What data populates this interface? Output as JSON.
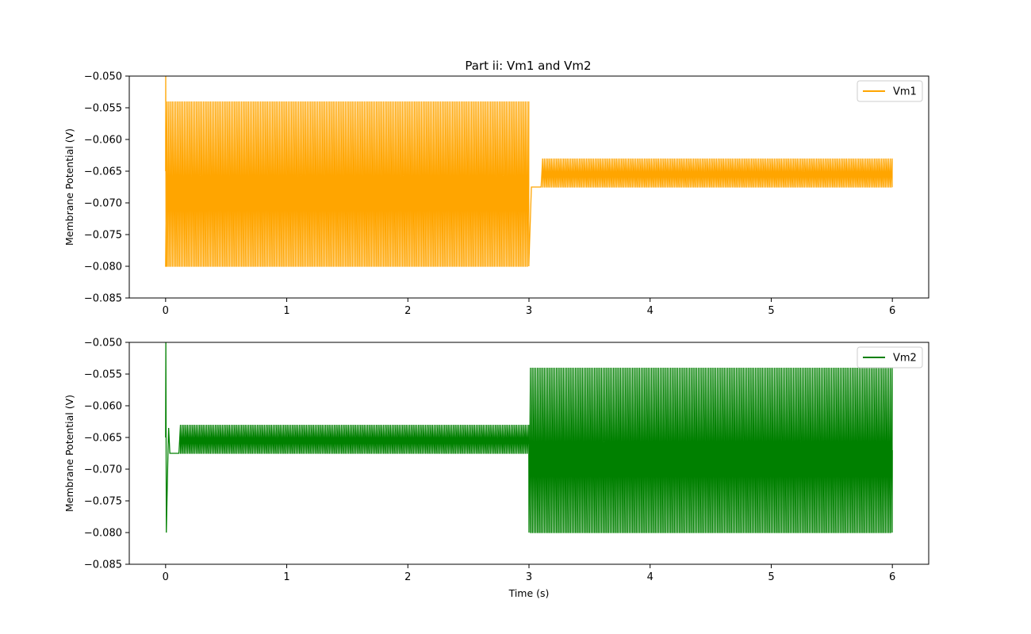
{
  "figure": {
    "title": "Part ii: Vm1 and Vm2"
  },
  "chart_data": [
    {
      "type": "line",
      "title": "Part ii: Vm1 and Vm2",
      "xlabel": "",
      "ylabel": "Membrane Potential (V)",
      "xlim": [
        -0.3,
        6.3
      ],
      "ylim": [
        -0.085,
        -0.05
      ],
      "x_ticks": [
        0,
        1,
        2,
        3,
        4,
        5,
        6
      ],
      "x_tick_labels": [
        "0",
        "1",
        "2",
        "3",
        "4",
        "5",
        "6"
      ],
      "y_ticks": [
        -0.085,
        -0.08,
        -0.075,
        -0.07,
        -0.065,
        -0.06,
        -0.055,
        -0.05
      ],
      "y_tick_labels": [
        "−0.085",
        "−0.080",
        "−0.075",
        "−0.070",
        "−0.065",
        "−0.060",
        "−0.055",
        "−0.050"
      ],
      "legend": "top-right",
      "grid": false,
      "series": [
        {
          "name": "Vm1",
          "color": "#ffa500",
          "segments": [
            {
              "x_start": 0.0,
              "x_end": 3.0,
              "v_high": -0.054,
              "v_low": -0.08,
              "spike_count": 210
            },
            {
              "x_start": 3.1,
              "x_end": 6.0,
              "v_high": -0.063,
              "v_low": -0.0675,
              "spike_count": 200
            }
          ],
          "initial_peak": -0.05,
          "transition_level": -0.0675
        }
      ]
    },
    {
      "type": "line",
      "title": "",
      "xlabel": "Time (s)",
      "ylabel": "Membrane Potential (V)",
      "xlim": [
        -0.3,
        6.3
      ],
      "ylim": [
        -0.085,
        -0.05
      ],
      "x_ticks": [
        0,
        1,
        2,
        3,
        4,
        5,
        6
      ],
      "x_tick_labels": [
        "0",
        "1",
        "2",
        "3",
        "4",
        "5",
        "6"
      ],
      "y_ticks": [
        -0.085,
        -0.08,
        -0.075,
        -0.07,
        -0.065,
        -0.06,
        -0.055,
        -0.05
      ],
      "y_tick_labels": [
        "−0.085",
        "−0.080",
        "−0.075",
        "−0.070",
        "−0.065",
        "−0.060",
        "−0.055",
        "−0.050"
      ],
      "legend": "top-right",
      "grid": false,
      "series": [
        {
          "name": "Vm2",
          "color": "#008000",
          "segments": [
            {
              "x_start": 0.11,
              "x_end": 3.0,
              "v_high": -0.063,
              "v_low": -0.0675,
              "spike_count": 200
            },
            {
              "x_start": 3.0,
              "x_end": 6.0,
              "v_high": -0.054,
              "v_low": -0.08,
              "spike_count": 210
            }
          ],
          "initial_peak": -0.05,
          "initial_trough": -0.08,
          "transition_level": -0.0675
        }
      ]
    }
  ]
}
